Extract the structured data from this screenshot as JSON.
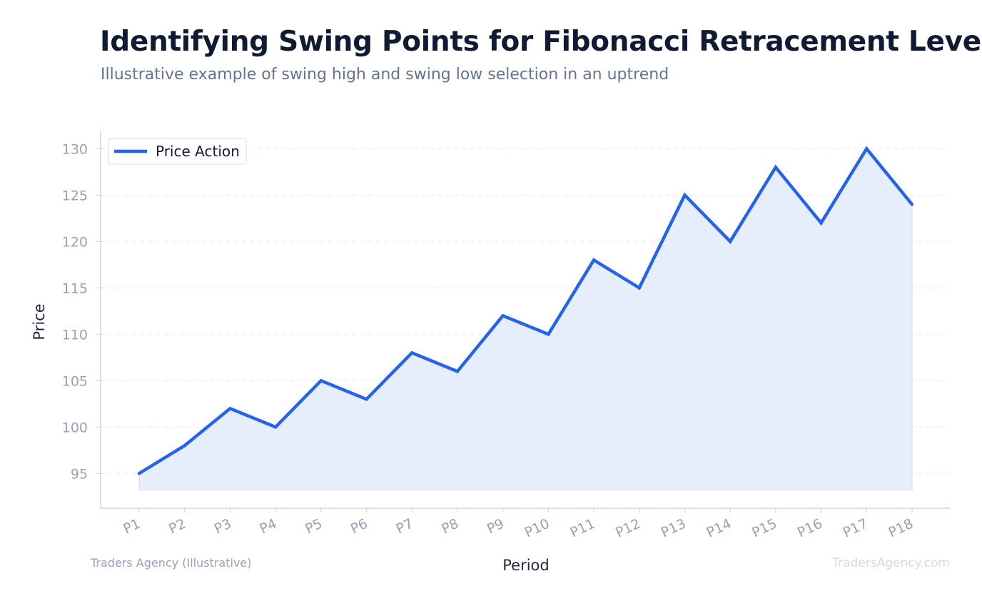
{
  "header": {
    "title": "Identifying Swing Points for Fibonacci Retracement Levels",
    "subtitle": "Illustrative example of swing high and swing low selection in an uptrend"
  },
  "footer": {
    "source": "Traders Agency (Illustrative)",
    "brand": "TradersAgency.com"
  },
  "colors": {
    "line": "#2563eb",
    "fill": "#e6eefb",
    "grid": "#e5e9f0",
    "axis": "#cbd5e1",
    "tick_text": "#94a3b8",
    "axis_label": "#1e293b"
  },
  "chart_data": {
    "type": "area",
    "xlabel": "Period",
    "ylabel": "Price",
    "categories": [
      "P1",
      "P2",
      "P3",
      "P4",
      "P5",
      "P6",
      "P7",
      "P8",
      "P9",
      "P10",
      "P11",
      "P12",
      "P13",
      "P14",
      "P15",
      "P16",
      "P17",
      "P18"
    ],
    "series": [
      {
        "name": "Price Action",
        "values": [
          95,
          98,
          102,
          100,
          105,
          103,
          108,
          106,
          112,
          110,
          118,
          115,
          125,
          120,
          128,
          122,
          130,
          124
        ]
      }
    ],
    "yticks": [
      95,
      100,
      105,
      110,
      115,
      120,
      125,
      130
    ],
    "ylim": [
      91.25,
      131.95
    ],
    "area_baseline": 93.2,
    "grid": true,
    "legend_position": "top-left"
  }
}
